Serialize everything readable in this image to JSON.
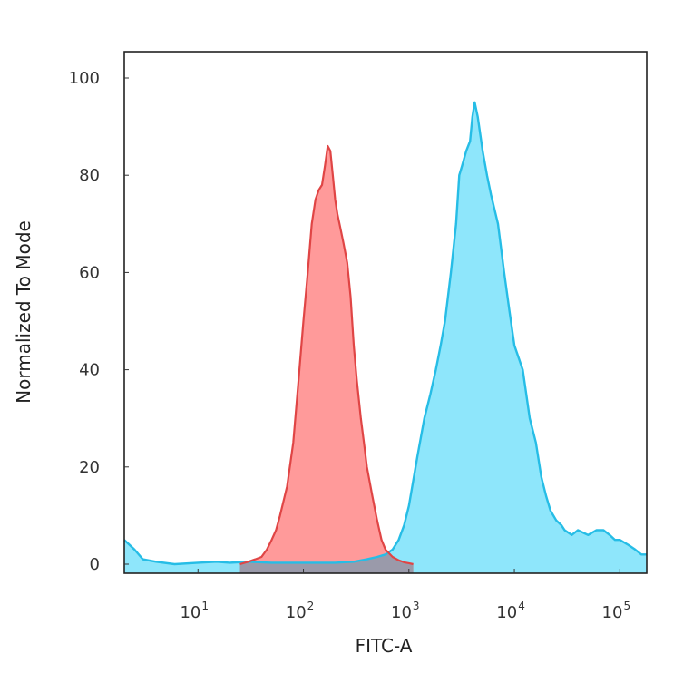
{
  "chart_data": {
    "type": "area",
    "title": "",
    "xlabel": "FITC-A",
    "ylabel": "Normalized To Mode",
    "x_scale": "log",
    "xlim": [
      2,
      180000
    ],
    "ylim": [
      0,
      100
    ],
    "grid": false,
    "x_ticks": [
      {
        "value": 10,
        "base": "10",
        "exp": "1"
      },
      {
        "value": 100,
        "base": "10",
        "exp": "2"
      },
      {
        "value": 1000,
        "base": "10",
        "exp": "3"
      },
      {
        "value": 10000,
        "base": "10",
        "exp": "4"
      },
      {
        "value": 100000,
        "base": "10",
        "exp": "5"
      }
    ],
    "y_ticks": [
      0,
      20,
      40,
      60,
      80,
      100
    ],
    "y_tick_labels": [
      "0",
      "20",
      "40",
      "60",
      "80",
      "100"
    ],
    "colors": {
      "control_fill": "#ff9a9a",
      "control_line": "#e04545",
      "stained_fill": "#8ee6fb",
      "stained_line": "#26bde6",
      "overlap_fill": "#9a9aaa"
    },
    "series": [
      {
        "x": [
          25,
          30,
          35,
          40,
          45,
          50,
          55,
          60,
          70,
          80,
          90,
          100,
          110,
          120,
          130,
          140,
          150,
          160,
          170,
          180,
          190,
          200,
          210,
          220,
          240,
          260,
          280,
          300,
          320,
          350,
          380,
          400,
          450,
          500,
          550,
          600,
          700,
          800,
          900,
          1000,
          1100
        ],
        "y": [
          0,
          0.5,
          1,
          1.5,
          3,
          5,
          7,
          10,
          16,
          25,
          38,
          50,
          60,
          70,
          75,
          77,
          78,
          82,
          86,
          85,
          80,
          75,
          72,
          70,
          66,
          62,
          55,
          45,
          38,
          30,
          24,
          20,
          14,
          9,
          5,
          3,
          1.5,
          0.8,
          0.4,
          0.2,
          0
        ]
      },
      {
        "x": [
          2,
          2.5,
          3,
          4,
          6,
          10,
          15,
          20,
          30,
          50,
          100,
          200,
          300,
          400,
          500,
          600,
          700,
          800,
          900,
          1000,
          1200,
          1400,
          1600,
          1800,
          2000,
          2200,
          2500,
          2800,
          3000,
          3200,
          3500,
          3800,
          4000,
          4200,
          4500,
          5000,
          5500,
          6000,
          7000,
          8000,
          9000,
          10000,
          12000,
          14000,
          16000,
          18000,
          20000,
          22000,
          25000,
          28000,
          30000,
          35000,
          40000,
          50000,
          60000,
          70000,
          80000,
          90000,
          100000,
          120000,
          140000,
          160000,
          180000
        ],
        "y": [
          5,
          3,
          1,
          0.5,
          0,
          0.3,
          0.5,
          0.3,
          0.5,
          0.3,
          0.3,
          0.3,
          0.5,
          1,
          1.5,
          2,
          3,
          5,
          8,
          12,
          22,
          30,
          35,
          40,
          45,
          50,
          60,
          70,
          80,
          82,
          85,
          87,
          92,
          95,
          92,
          85,
          80,
          76,
          70,
          60,
          52,
          45,
          40,
          30,
          25,
          18,
          14,
          11,
          9,
          8,
          7,
          6,
          7,
          6,
          7,
          7,
          6,
          5,
          5,
          4,
          3,
          2,
          2
        ]
      }
    ]
  }
}
